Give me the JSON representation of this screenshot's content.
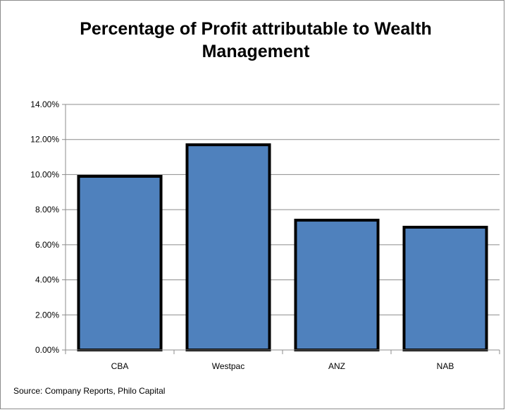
{
  "chart_data": {
    "type": "bar",
    "title_lines": [
      "Percentage of Profit attributable to Wealth",
      "Management"
    ],
    "categories": [
      "CBA",
      "Westpac",
      "ANZ",
      "NAB"
    ],
    "values": [
      9.9,
      11.7,
      7.4,
      7.0
    ],
    "ylim": [
      0,
      14
    ],
    "yticks": [
      0,
      2,
      4,
      6,
      8,
      10,
      12,
      14
    ],
    "ytick_labels": [
      "0.00%",
      "2.00%",
      "4.00%",
      "6.00%",
      "8.00%",
      "10.00%",
      "12.00%",
      "14.00%"
    ],
    "xlabel": "",
    "ylabel": "",
    "grid": true,
    "legend": "none",
    "bar_color": "#4f81bd",
    "bar_edge_color": "#000000",
    "source": "Source: Company Reports, Philo Capital"
  }
}
